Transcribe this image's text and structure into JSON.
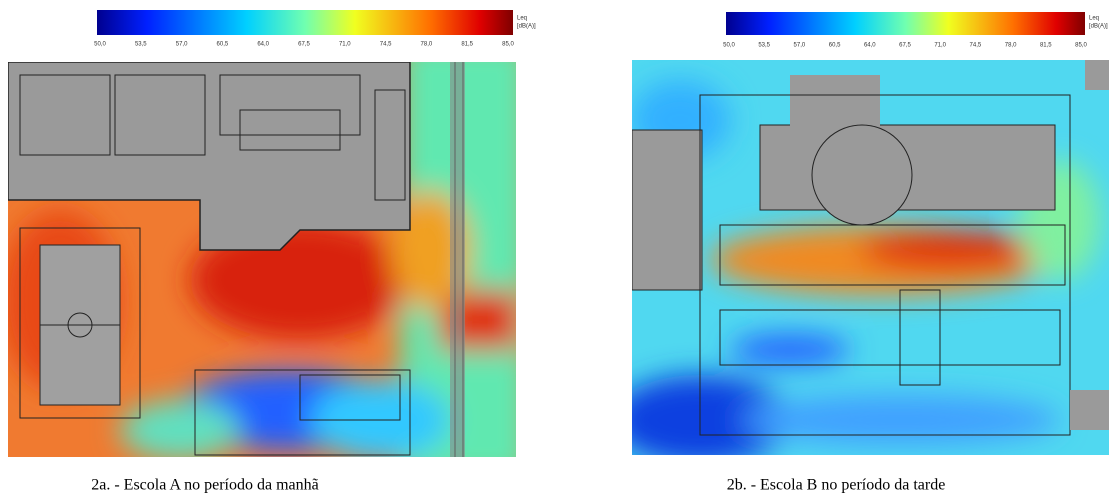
{
  "panels": [
    {
      "colorbar": {
        "ticks": [
          "50,0",
          "53,5",
          "57,0",
          "60,5",
          "64,0",
          "67,5",
          "71,0",
          "74,5",
          "78,0",
          "81,5",
          "85,0"
        ],
        "unit": [
          "Leq",
          "[dB(A)]"
        ]
      },
      "caption": "2a. - Escola A no período da manhã"
    },
    {
      "colorbar": {
        "ticks": [
          "50,0",
          "53,5",
          "57,0",
          "60,5",
          "64,0",
          "67,5",
          "71,0",
          "74,5",
          "78,0",
          "81,5",
          "85,0"
        ],
        "unit": [
          "Leq",
          "[dB(A)]"
        ]
      },
      "caption": "2b. - Escola B no período da tarde"
    }
  ]
}
